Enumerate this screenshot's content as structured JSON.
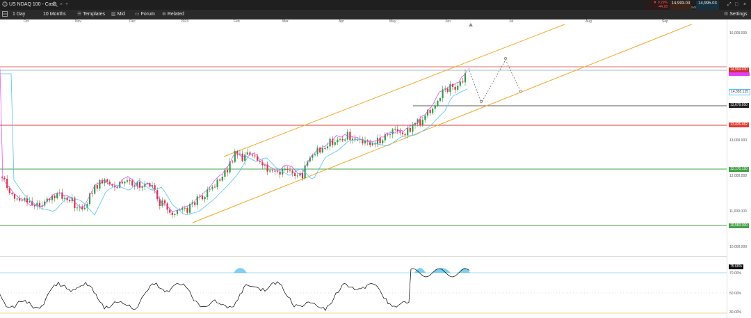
{
  "header": {
    "instrument": "US NDAQ 100 - Cash",
    "change_pct": "▼ 0.29%",
    "change_pts": "-44.28",
    "sell_price": "14,993.03",
    "spread": "2.00",
    "buy_price": "14,995.03"
  },
  "toolbar": {
    "interval": "1 Day",
    "range": "10 Months",
    "templates": "Templates",
    "price_type": "Mid",
    "forum": "Forum",
    "related": "Related",
    "settings": "Settings"
  },
  "time_axis": {
    "months": [
      "Oct",
      "Nov",
      "Dec",
      "2023",
      "Feb",
      "Mar",
      "Apr",
      "May",
      "Jun",
      "Jul",
      "Aug",
      "Sep"
    ]
  },
  "price_axis": {
    "labels": [
      "16,000.000",
      "13,000.000",
      "12,000.000",
      "11,000.000",
      "10,000.000"
    ],
    "tags": {
      "current": "14,994.030",
      "ma": "14,355.125",
      "support_1": "13,679.950",
      "level_red": "13,426.462",
      "level_green_1": "12,170.150",
      "level_green_2": "10,583.300"
    }
  },
  "rsi": {
    "current": "75.66%",
    "labels": [
      "70.00%",
      "50.00%",
      "30.00%"
    ]
  },
  "colors": {
    "up": "#2e9e45",
    "down": "#d9343b",
    "channel": "#f5a623",
    "red_level": "#e53935",
    "green_level": "#43a047",
    "ma_pink": "#e040fb",
    "ma_blue": "#4fc3f7",
    "rsi_line": "#000000",
    "rsi_fill": "#5ec4e8"
  }
}
